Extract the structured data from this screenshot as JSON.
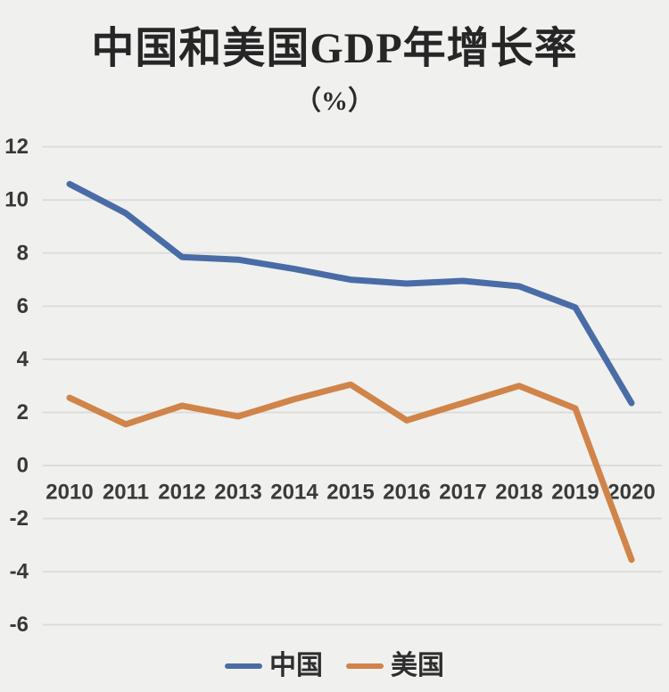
{
  "page": {
    "background_color": "#f0f0ee",
    "gridline_color": "#dcdcda"
  },
  "header": {
    "title": "中国和美国GDP年增长率",
    "subtitle": "（%）"
  },
  "chart_data": {
    "type": "line",
    "title": "中国和美国GDP年增长率",
    "subtitle": "（%）",
    "xlabel": "",
    "ylabel": "",
    "x": [
      2010,
      2011,
      2012,
      2013,
      2014,
      2015,
      2016,
      2017,
      2018,
      2019,
      2020
    ],
    "series": [
      {
        "name": "中国",
        "color": "#4a6ca6",
        "values": [
          10.6,
          9.5,
          7.85,
          7.75,
          7.4,
          7.0,
          6.85,
          6.95,
          6.75,
          5.95,
          2.35
        ]
      },
      {
        "name": "美国",
        "color": "#d08449",
        "values": [
          2.55,
          1.55,
          2.25,
          1.85,
          2.5,
          3.05,
          1.7,
          2.35,
          3.0,
          2.15,
          -3.55
        ]
      }
    ],
    "ylim": [
      -6,
      12
    ],
    "yticks": [
      12,
      10,
      8,
      6,
      4,
      2,
      0,
      -2,
      -4,
      -6
    ],
    "grid": true,
    "legend_position": "bottom"
  },
  "legend": {
    "items": [
      {
        "label": "中国",
        "color": "#4a6ca6"
      },
      {
        "label": "美国",
        "color": "#d08449"
      }
    ]
  }
}
